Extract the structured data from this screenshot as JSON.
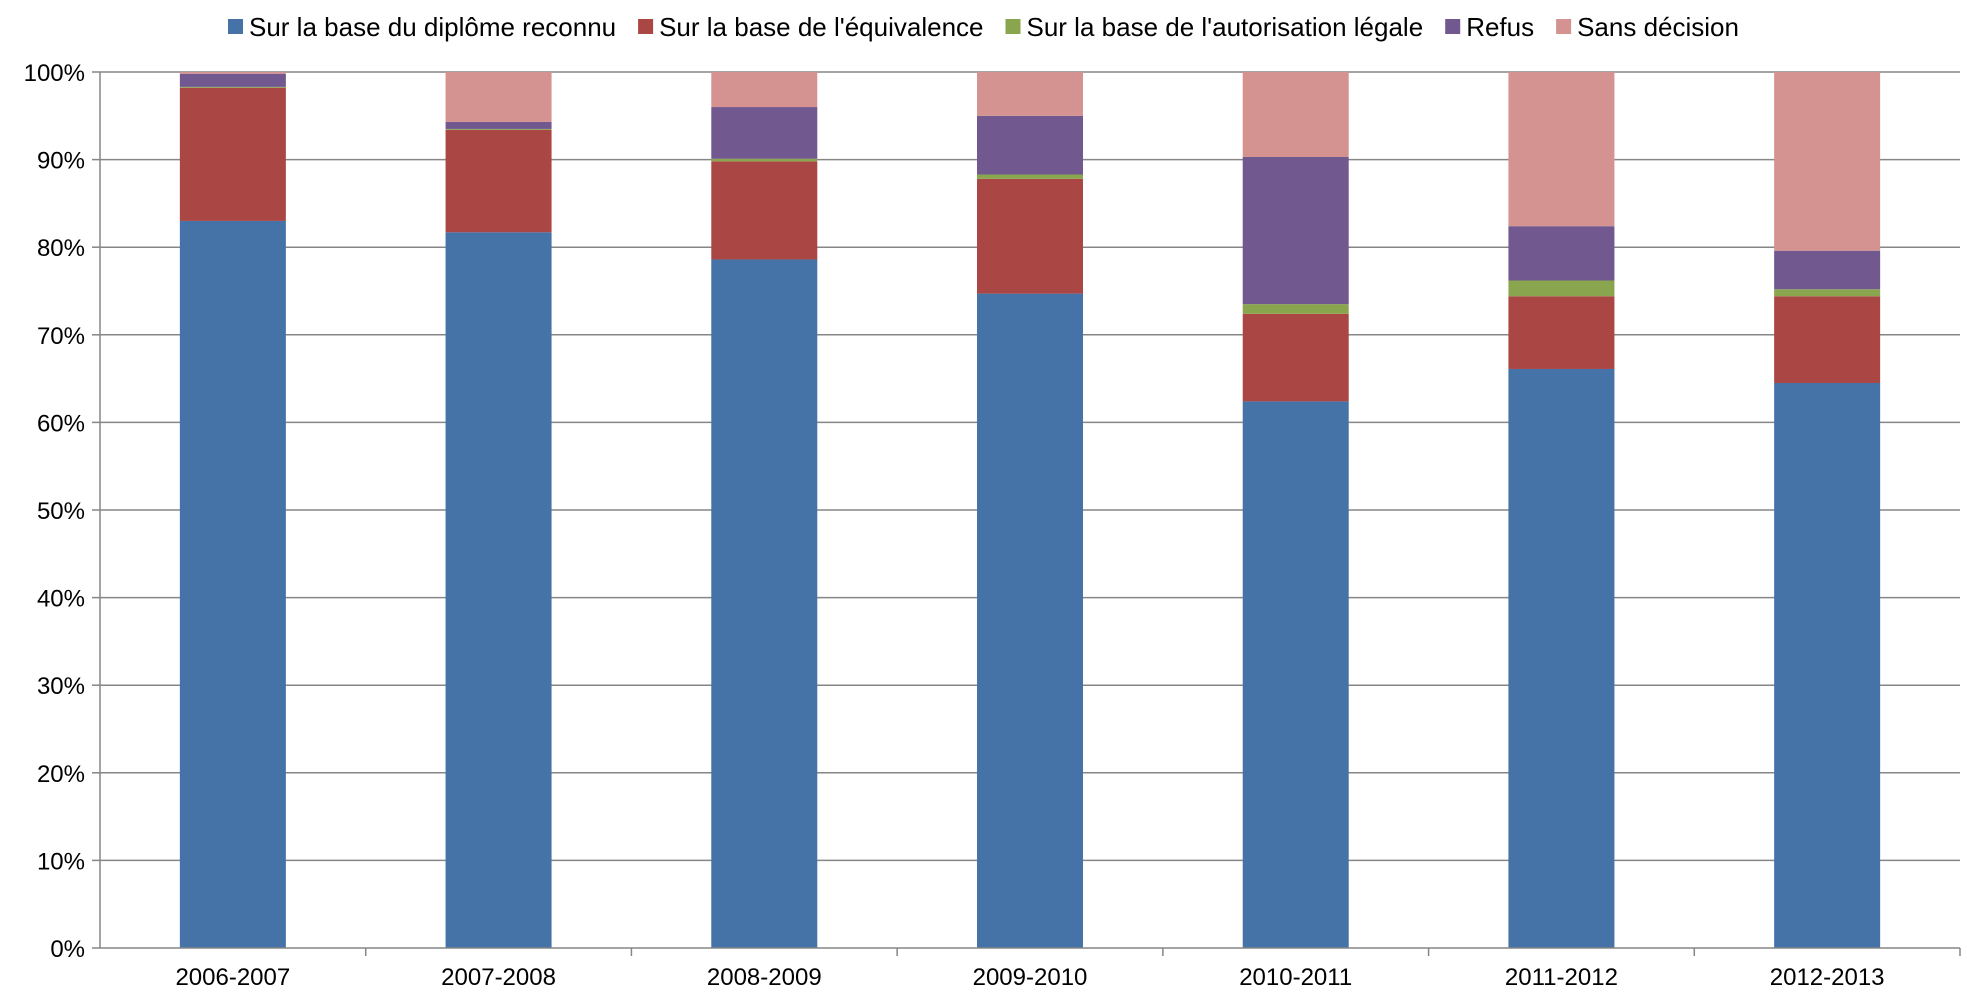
{
  "chart_data": {
    "type": "bar",
    "stacked": true,
    "percent_stacked": true,
    "title": "",
    "xlabel": "",
    "ylabel": "",
    "categories": [
      "2006-2007",
      "2007-2008",
      "2008-2009",
      "2009-2010",
      "2010-2011",
      "2011-2012",
      "2012-2013"
    ],
    "series": [
      {
        "name": "Sur la base du diplôme reconnu",
        "color": "#4573A7",
        "values": [
          83.0,
          81.7,
          78.6,
          74.7,
          62.4,
          66.1,
          64.5
        ]
      },
      {
        "name": "Sur la base de l'équivalence",
        "color": "#AA4644",
        "values": [
          15.2,
          11.7,
          11.2,
          13.1,
          10.0,
          8.3,
          9.9
        ]
      },
      {
        "name": "Sur la base de l'autorisation légale",
        "color": "#89A54E",
        "values": [
          0.1,
          0.1,
          0.3,
          0.5,
          1.1,
          1.8,
          0.8
        ]
      },
      {
        "name": "Refus",
        "color": "#71588F",
        "values": [
          1.5,
          0.8,
          5.9,
          6.7,
          16.8,
          6.2,
          4.4
        ]
      },
      {
        "name": "Sans décision",
        "color": "#D49290",
        "values": [
          0.2,
          5.7,
          4.0,
          5.0,
          9.7,
          17.6,
          20.4
        ]
      }
    ],
    "ylim": [
      0,
      100
    ],
    "yticks": [
      "0%",
      "10%",
      "20%",
      "30%",
      "40%",
      "50%",
      "60%",
      "70%",
      "80%",
      "90%",
      "100%"
    ],
    "grid": true,
    "legend_position": "top"
  }
}
